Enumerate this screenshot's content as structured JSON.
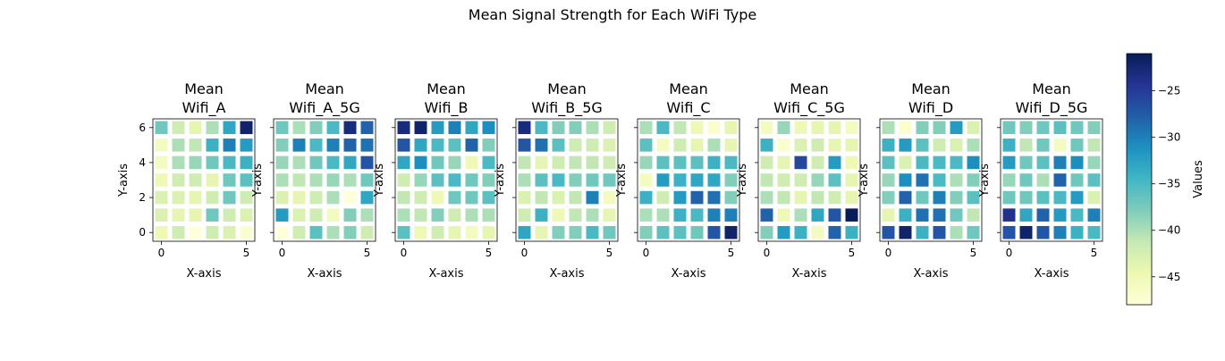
{
  "chart_data": {
    "type": "heatmap",
    "title": "Mean Signal Strength for Each WiFi Type",
    "xlabel": "X-axis",
    "ylabel": "Y-axis",
    "x_ticks": [
      0,
      5
    ],
    "y_ticks": [
      0,
      2,
      4,
      6
    ],
    "xlim": [
      -0.5,
      5.5
    ],
    "ylim": [
      -0.5,
      6.5
    ],
    "grid": true,
    "colormap": "YlGnBu",
    "colorbar": {
      "label": "Values",
      "range": [
        -48,
        -21
      ],
      "ticks": [
        -25,
        -30,
        -35,
        -40,
        -45
      ],
      "tick_labels": [
        "−25",
        "−30",
        "−35",
        "−40",
        "−45"
      ]
    },
    "panels": [
      {
        "title_line1": "Mean",
        "title_line2": "Wifi_A",
        "values": [
          [
            -45,
            -42,
            -48,
            -42,
            -43,
            -47
          ],
          [
            -43,
            -44,
            -44,
            -37,
            -42,
            -43
          ],
          [
            -43,
            -43,
            -44,
            -42,
            -37,
            -42
          ],
          [
            -45,
            -42,
            -42,
            -44,
            -37,
            -36
          ],
          [
            -46,
            -40,
            -39,
            -37,
            -35,
            -34
          ],
          [
            -46,
            -40,
            -41,
            -34,
            -30,
            -32
          ],
          [
            -37,
            -42,
            -44,
            -40,
            -33,
            -22
          ]
        ]
      },
      {
        "title_line1": "Mean",
        "title_line2": "Wifi_A_5G",
        "values": [
          [
            -48,
            -42,
            -36,
            -40,
            -38,
            -42
          ],
          [
            -32,
            -43,
            -42,
            -46,
            -38,
            -40
          ],
          [
            -43,
            -44,
            -42,
            -40,
            -48,
            -33
          ],
          [
            -40,
            -41,
            -40,
            -39,
            -40,
            -37
          ],
          [
            -39,
            -40,
            -37,
            -35,
            -33,
            -27
          ],
          [
            -38,
            -30,
            -35,
            -30,
            -28,
            -29
          ],
          [
            -37,
            -40,
            -38,
            -35,
            -23,
            -28
          ]
        ]
      },
      {
        "title_line1": "Mean",
        "title_line2": "Wifi_B",
        "values": [
          [
            -36,
            -45,
            -42,
            -44,
            -46,
            -44
          ],
          [
            -40,
            -41,
            -38,
            -42,
            -40,
            -40
          ],
          [
            -41,
            -42,
            -45,
            -37,
            -37,
            -36
          ],
          [
            -42,
            -39,
            -36,
            -35,
            -37,
            -38
          ],
          [
            -33,
            -31,
            -37,
            -39,
            -45,
            -35
          ],
          [
            -27,
            -33,
            -35,
            -36,
            -28,
            -38
          ],
          [
            -23,
            -22,
            -32,
            -30,
            -33,
            -31
          ]
        ]
      },
      {
        "title_line1": "Mean",
        "title_line2": "Wifi_B_5G",
        "values": [
          [
            -33,
            -44,
            -38,
            -38,
            -35,
            -37
          ],
          [
            -42,
            -34,
            -45,
            -41,
            -40,
            -44
          ],
          [
            -43,
            -41,
            -43,
            -41,
            -30,
            -46
          ],
          [
            -40,
            -36,
            -35,
            -38,
            -37,
            -37
          ],
          [
            -41,
            -44,
            -42,
            -41,
            -41,
            -42
          ],
          [
            -27,
            -29,
            -36,
            -42,
            -42,
            -43
          ],
          [
            -23,
            -35,
            -38,
            -38,
            -40,
            -42
          ]
        ]
      },
      {
        "title_line1": "Mean",
        "title_line2": "Wifi_C",
        "values": [
          [
            -38,
            -36,
            -36,
            -37,
            -27,
            -22
          ],
          [
            -40,
            -40,
            -34,
            -35,
            -30,
            -30
          ],
          [
            -34,
            -42,
            -32,
            -28,
            -29,
            -38
          ],
          [
            -46,
            -32,
            -34,
            -33,
            -33,
            -38
          ],
          [
            -39,
            -36,
            -36,
            -36,
            -34,
            -35
          ],
          [
            -36,
            -46,
            -42,
            -44,
            -40,
            -44
          ],
          [
            -40,
            -35,
            -41,
            -45,
            -47,
            -44
          ]
        ]
      },
      {
        "title_line1": "Mean",
        "title_line2": "Wifi_C_5G",
        "values": [
          [
            -38,
            -32,
            -34,
            -46,
            -28,
            -34
          ],
          [
            -28,
            -45,
            -40,
            -33,
            -27,
            -21
          ],
          [
            -40,
            -41,
            -44,
            -41,
            -42,
            -44
          ],
          [
            -41,
            -42,
            -42,
            -39,
            -36,
            -44
          ],
          [
            -42,
            -44,
            -26,
            -42,
            -32,
            -45
          ],
          [
            -34,
            -47,
            -43,
            -42,
            -44,
            -44
          ],
          [
            -46,
            -39,
            -45,
            -44,
            -44,
            -46
          ]
        ]
      },
      {
        "title_line1": "Mean",
        "title_line2": "Wifi_D",
        "values": [
          [
            -27,
            -22,
            -34,
            -27,
            -40,
            -37
          ],
          [
            -44,
            -34,
            -29,
            -29,
            -37,
            -41
          ],
          [
            -38,
            -28,
            -37,
            -30,
            -38,
            -36
          ],
          [
            -39,
            -31,
            -29,
            -35,
            -40,
            -38
          ],
          [
            -36,
            -43,
            -35,
            -35,
            -35,
            -31
          ],
          [
            -34,
            -32,
            -36,
            -42,
            -43,
            -40
          ],
          [
            -40,
            -47,
            -38,
            -38,
            -32,
            -43
          ]
        ]
      },
      {
        "title_line1": "Mean",
        "title_line2": "Wifi_D_5G",
        "values": [
          [
            -27,
            -22,
            -27,
            -30,
            -34,
            -35
          ],
          [
            -24,
            -33,
            -28,
            -32,
            -35,
            -30
          ],
          [
            -37,
            -37,
            -36,
            -35,
            -32,
            -43
          ],
          [
            -39,
            -37,
            -40,
            -28,
            -37,
            -36
          ],
          [
            -32,
            -37,
            -36,
            -30,
            -31,
            -39
          ],
          [
            -34,
            -41,
            -37,
            -46,
            -37,
            -41
          ],
          [
            -37,
            -38,
            -37,
            -36,
            -37,
            -38
          ]
        ]
      }
    ]
  }
}
